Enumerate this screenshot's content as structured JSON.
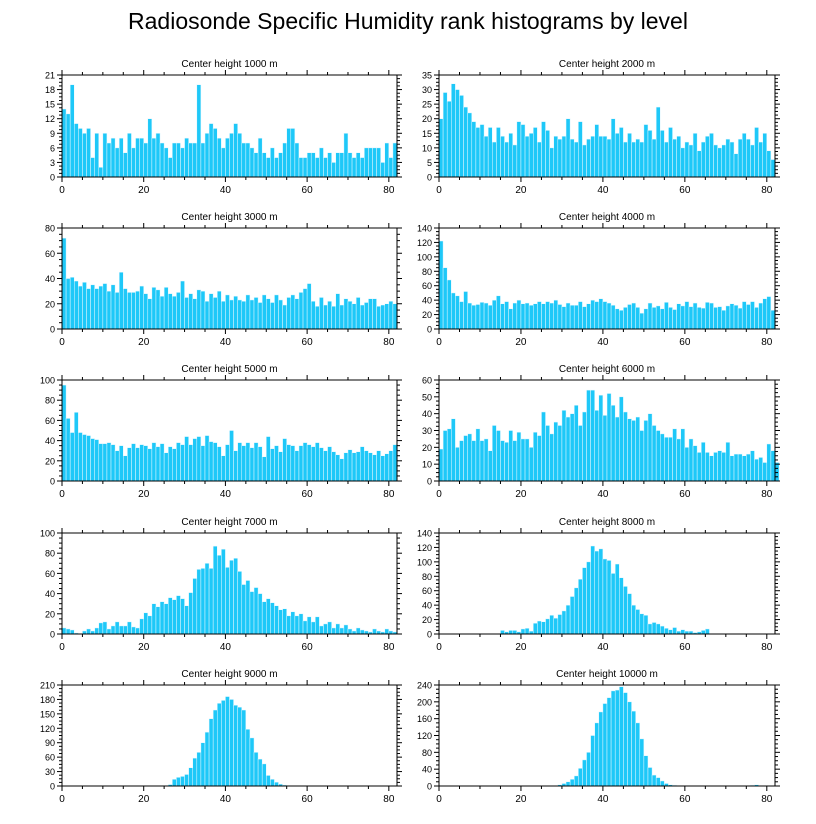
{
  "title": "Radiosonde Specific Humidity rank histograms by level",
  "colors": {
    "bar": "#1EC8F8",
    "bar_edge": "#E8F8FF",
    "axis": "#000000"
  },
  "chart_data": [
    {
      "type": "bar",
      "title": "Center height 1000 m",
      "xlim": [
        0,
        82
      ],
      "ylim": [
        0,
        21
      ],
      "xticks": [
        0,
        20,
        40,
        60,
        80
      ],
      "yticks": [
        0,
        3,
        6,
        9,
        12,
        15,
        18,
        21
      ],
      "values": [
        14,
        13,
        19,
        11,
        10,
        9,
        10,
        4,
        9,
        2,
        9,
        7,
        8,
        6,
        8,
        5,
        9,
        6,
        8,
        8,
        7,
        12,
        8,
        9,
        7,
        6,
        4,
        7,
        7,
        6,
        8,
        7,
        7,
        19,
        7,
        9,
        11,
        10,
        8,
        6,
        8,
        9,
        11,
        9,
        7,
        7,
        6,
        5,
        8,
        5,
        4,
        6,
        4,
        5,
        7,
        10,
        10,
        7,
        4,
        4,
        5,
        5,
        4,
        6,
        4,
        5,
        3,
        5,
        5,
        9,
        5,
        4,
        5,
        4,
        6,
        6,
        6,
        6,
        3,
        7,
        4,
        7
      ]
    },
    {
      "type": "bar",
      "title": "Center height 2000 m",
      "xlim": [
        0,
        82
      ],
      "ylim": [
        0,
        35
      ],
      "xticks": [
        0,
        20,
        40,
        60,
        80
      ],
      "yticks": [
        0,
        5,
        10,
        15,
        20,
        25,
        30,
        35
      ],
      "values": [
        20,
        29,
        26,
        32,
        30,
        28,
        24,
        22,
        19,
        17,
        18,
        14,
        17,
        12,
        17,
        14,
        12,
        15,
        11,
        19,
        18,
        14,
        15,
        17,
        12,
        19,
        16,
        10,
        14,
        13,
        14,
        20,
        13,
        12,
        19,
        11,
        13,
        14,
        18,
        14,
        14,
        13,
        20,
        15,
        17,
        12,
        15,
        12,
        13,
        12,
        18,
        16,
        13,
        24,
        16,
        12,
        17,
        13,
        14,
        10,
        12,
        11,
        15,
        9,
        12,
        14,
        15,
        11,
        10,
        11,
        13,
        12,
        8,
        13,
        15,
        13,
        11,
        17,
        12,
        15,
        9,
        6
      ]
    },
    {
      "type": "bar",
      "title": "Center height 3000 m",
      "xlim": [
        0,
        82
      ],
      "ylim": [
        0,
        80
      ],
      "xticks": [
        0,
        20,
        40,
        60,
        80
      ],
      "yticks": [
        0,
        20,
        40,
        60,
        80
      ],
      "values": [
        72,
        40,
        41,
        38,
        34,
        37,
        32,
        35,
        32,
        34,
        36,
        30,
        35,
        29,
        45,
        32,
        29,
        29,
        30,
        34,
        28,
        24,
        33,
        31,
        26,
        33,
        28,
        26,
        29,
        38,
        25,
        28,
        24,
        31,
        30,
        22,
        28,
        25,
        30,
        22,
        27,
        23,
        26,
        23,
        22,
        27,
        23,
        25,
        21,
        27,
        24,
        21,
        27,
        23,
        19,
        25,
        27,
        24,
        29,
        32,
        36,
        22,
        18,
        25,
        19,
        22,
        18,
        28,
        19,
        24,
        22,
        20,
        25,
        19,
        21,
        24,
        24,
        18,
        19,
        20,
        22,
        20
      ]
    },
    {
      "type": "bar",
      "title": "Center height 4000 m",
      "xlim": [
        0,
        82
      ],
      "ylim": [
        0,
        140
      ],
      "xticks": [
        0,
        20,
        40,
        60,
        80
      ],
      "yticks": [
        0,
        20,
        40,
        60,
        80,
        100,
        120,
        140
      ],
      "values": [
        122,
        85,
        68,
        50,
        46,
        38,
        52,
        36,
        33,
        34,
        37,
        36,
        33,
        40,
        46,
        35,
        38,
        28,
        36,
        40,
        35,
        36,
        33,
        35,
        38,
        35,
        38,
        36,
        40,
        34,
        31,
        36,
        33,
        33,
        38,
        31,
        35,
        40,
        38,
        42,
        38,
        36,
        33,
        28,
        26,
        30,
        34,
        36,
        30,
        22,
        28,
        36,
        30,
        32,
        28,
        37,
        30,
        27,
        35,
        32,
        38,
        31,
        36,
        30,
        29,
        37,
        36,
        30,
        31,
        26,
        32,
        35,
        33,
        29,
        38,
        34,
        38,
        30,
        36,
        42,
        45,
        26
      ]
    },
    {
      "type": "bar",
      "title": "Center height 5000 m",
      "xlim": [
        0,
        82
      ],
      "ylim": [
        0,
        100
      ],
      "xticks": [
        0,
        20,
        40,
        60,
        80
      ],
      "yticks": [
        0,
        20,
        40,
        60,
        80,
        100
      ],
      "values": [
        95,
        62,
        48,
        68,
        48,
        46,
        45,
        42,
        41,
        37,
        37,
        38,
        36,
        30,
        35,
        25,
        33,
        37,
        33,
        36,
        35,
        32,
        38,
        34,
        37,
        28,
        34,
        32,
        38,
        36,
        44,
        36,
        42,
        44,
        35,
        45,
        39,
        38,
        34,
        25,
        36,
        50,
        30,
        38,
        35,
        38,
        33,
        38,
        34,
        24,
        44,
        32,
        35,
        29,
        42,
        36,
        35,
        30,
        35,
        38,
        36,
        34,
        38,
        33,
        30,
        34,
        29,
        26,
        22,
        28,
        31,
        28,
        29,
        34,
        30,
        28,
        26,
        30,
        25,
        27,
        30,
        36
      ]
    },
    {
      "type": "bar",
      "title": "Center height 6000 m",
      "xlim": [
        0,
        82
      ],
      "ylim": [
        0,
        60
      ],
      "xticks": [
        0,
        20,
        40,
        60,
        80
      ],
      "yticks": [
        0,
        10,
        20,
        30,
        40,
        50,
        60
      ],
      "values": [
        19,
        30,
        31,
        37,
        20,
        24,
        27,
        28,
        24,
        31,
        24,
        25,
        18,
        33,
        30,
        24,
        23,
        30,
        24,
        29,
        25,
        25,
        20,
        29,
        27,
        41,
        33,
        28,
        35,
        33,
        42,
        38,
        40,
        45,
        33,
        41,
        54,
        54,
        42,
        51,
        39,
        52,
        45,
        38,
        50,
        41,
        37,
        36,
        38,
        30,
        36,
        40,
        33,
        30,
        28,
        26,
        26,
        31,
        25,
        31,
        20,
        25,
        21,
        17,
        23,
        17,
        15,
        17,
        18,
        17,
        23,
        15,
        16,
        16,
        15,
        16,
        18,
        13,
        14,
        11,
        22,
        18,
        11
      ]
    },
    {
      "type": "bar",
      "title": "Center height 7000 m",
      "xlim": [
        0,
        82
      ],
      "ylim": [
        0,
        100
      ],
      "xticks": [
        0,
        20,
        40,
        60,
        80
      ],
      "yticks": [
        0,
        20,
        40,
        60,
        80,
        100
      ],
      "values": [
        6,
        5,
        4,
        1,
        0,
        3,
        5,
        3,
        6,
        11,
        12,
        5,
        8,
        12,
        8,
        8,
        12,
        7,
        6,
        15,
        21,
        18,
        30,
        27,
        32,
        30,
        36,
        34,
        38,
        35,
        28,
        41,
        55,
        64,
        65,
        70,
        65,
        87,
        78,
        84,
        66,
        73,
        75,
        62,
        49,
        53,
        42,
        46,
        40,
        32,
        35,
        31,
        28,
        24,
        25,
        18,
        22,
        18,
        20,
        13,
        17,
        12,
        17,
        8,
        10,
        12,
        6,
        10,
        6,
        9,
        5,
        3,
        6,
        4,
        3,
        2,
        5,
        3,
        2,
        5,
        3,
        2
      ]
    },
    {
      "type": "bar",
      "title": "Center height 8000 m",
      "xlim": [
        0,
        82
      ],
      "ylim": [
        0,
        140
      ],
      "xticks": [
        0,
        20,
        40,
        60,
        80
      ],
      "yticks": [
        0,
        20,
        40,
        60,
        80,
        100,
        120,
        140
      ],
      "values": [
        0,
        0,
        0,
        0,
        0,
        0,
        0,
        0,
        0,
        0,
        0,
        0,
        0,
        0,
        0,
        5,
        3,
        5,
        5,
        3,
        7,
        8,
        4,
        15,
        18,
        17,
        21,
        26,
        22,
        27,
        32,
        40,
        52,
        64,
        76,
        92,
        100,
        122,
        115,
        118,
        104,
        102,
        84,
        97,
        78,
        66,
        56,
        40,
        34,
        28,
        26,
        14,
        16,
        14,
        11,
        8,
        6,
        9,
        4,
        6,
        4,
        4,
        2,
        3,
        5,
        7,
        0,
        0,
        0,
        0,
        0,
        0,
        0,
        0,
        0,
        0,
        0,
        0,
        0,
        0,
        0,
        0
      ]
    },
    {
      "type": "bar",
      "title": "Center height 9000 m",
      "xlim": [
        0,
        82
      ],
      "ylim": [
        0,
        210
      ],
      "xticks": [
        0,
        20,
        40,
        60,
        80
      ],
      "yticks": [
        0,
        30,
        60,
        90,
        120,
        150,
        180,
        210
      ],
      "values": [
        0,
        0,
        0,
        0,
        0,
        0,
        0,
        0,
        0,
        0,
        0,
        0,
        0,
        0,
        0,
        0,
        0,
        0,
        0,
        0,
        0,
        0,
        0,
        0,
        0,
        0,
        3,
        14,
        18,
        20,
        24,
        38,
        58,
        70,
        90,
        112,
        140,
        158,
        172,
        178,
        186,
        180,
        168,
        164,
        158,
        118,
        100,
        70,
        56,
        46,
        22,
        14,
        8,
        4,
        2,
        0,
        0,
        0,
        0,
        0,
        0,
        0,
        0,
        0,
        0,
        0,
        0,
        0,
        0,
        0,
        0,
        0,
        0,
        0,
        0,
        0,
        0,
        0,
        0,
        0,
        0,
        0
      ]
    },
    {
      "type": "bar",
      "title": "Center height 10000 m",
      "xlim": [
        0,
        82
      ],
      "ylim": [
        0,
        240
      ],
      "xticks": [
        0,
        20,
        40,
        60,
        80
      ],
      "yticks": [
        0,
        40,
        80,
        120,
        160,
        200,
        240
      ],
      "values": [
        0,
        0,
        0,
        0,
        0,
        0,
        0,
        0,
        0,
        0,
        0,
        0,
        0,
        0,
        0,
        0,
        0,
        0,
        0,
        0,
        0,
        0,
        0,
        0,
        0,
        0,
        0,
        0,
        0,
        3,
        6,
        10,
        16,
        24,
        42,
        62,
        80,
        120,
        150,
        176,
        196,
        210,
        226,
        228,
        236,
        222,
        200,
        178,
        150,
        112,
        72,
        44,
        26,
        20,
        12,
        6,
        3,
        2,
        0,
        0,
        0,
        0,
        0,
        0,
        0,
        0,
        0,
        0,
        0,
        0,
        0,
        0,
        0,
        0,
        0,
        0,
        2,
        3,
        0,
        0,
        0,
        0
      ]
    }
  ]
}
